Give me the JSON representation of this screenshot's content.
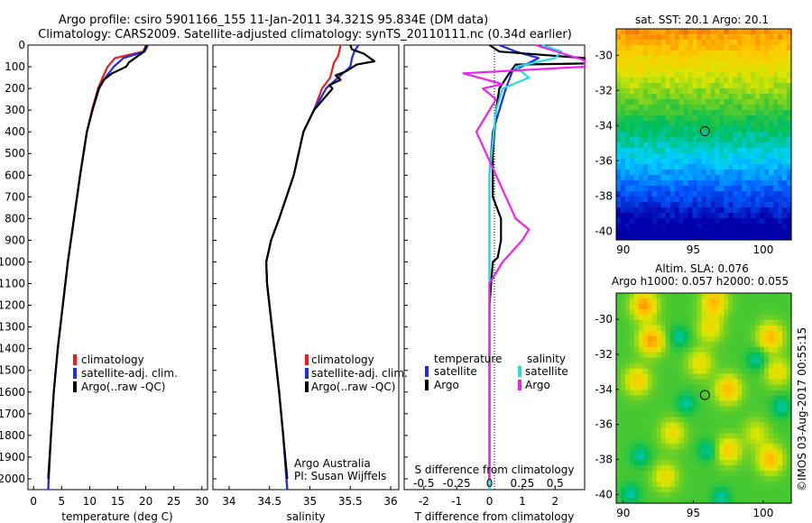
{
  "header": {
    "line1": "Argo profile: csiro 5901166_155 11-Jan-2011 34.321S 95.834E (DM data)",
    "line2": "Climatology: CARS2009. Satellite-adjusted climatology: synTS_20110111.nc (0.34d earlier)"
  },
  "colors": {
    "climatology": "#ee1c1c",
    "satellite": "#1c2bee",
    "argo": "#000000",
    "salinity_satellite": "#22dddd",
    "salinity_argo": "#ee22ee"
  },
  "legend": {
    "climatology": "climatology",
    "satellite": "satellite-adj. clim.",
    "argo": "Argo(..raw -QC)"
  },
  "diff_legend": {
    "temp_header": "temperature",
    "sal_header": "salinity",
    "satellite": "satellite",
    "argo": "Argo"
  },
  "annotation": {
    "line1": "Argo Australia",
    "line2": "PI: Susan Wijffels"
  },
  "maps": {
    "sst_title": "sat. SST: 20.1 Argo: 20.1",
    "sla_title1": "Altim. SLA: 0.076",
    "sla_title2": "Argo h1000: 0.057 h2000: 0.055"
  },
  "stamp": "©IMOS 03-Aug-2017 00:55:15",
  "chart_data": [
    {
      "type": "line",
      "panel": "temperature",
      "xlabel": "temperature (deg C)",
      "ylim": [
        2050,
        0
      ],
      "xlim": [
        -1,
        31
      ],
      "x_ticks": [
        0,
        5,
        10,
        15,
        20,
        25,
        30
      ],
      "x_tick_labels": [
        "0",
        "5",
        "10",
        "15",
        "20",
        "25",
        "30"
      ],
      "y_ticks": [
        0,
        100,
        200,
        300,
        400,
        500,
        600,
        700,
        800,
        900,
        1000,
        1100,
        1200,
        1300,
        1400,
        1500,
        1600,
        1700,
        1800,
        1900,
        2000
      ],
      "y_tick_labels": [
        "0",
        "100",
        "200",
        "300",
        "400",
        "500",
        "600",
        "700",
        "800",
        "900",
        "1000",
        "1100",
        "1200",
        "1300",
        "1400",
        "1500",
        "1600",
        "1700",
        "1800",
        "1900",
        "2000"
      ],
      "series": [
        {
          "name": "climatology",
          "color": "#ee1c1c",
          "points": [
            [
              20.1,
              0
            ],
            [
              19.5,
              30
            ],
            [
              14.5,
              60
            ],
            [
              13.2,
              100
            ],
            [
              12.3,
              150
            ],
            [
              11.5,
              200
            ],
            [
              10.4,
              300
            ],
            [
              9.5,
              400
            ],
            [
              8.3,
              600
            ],
            [
              7.2,
              800
            ],
            [
              6.1,
              1000
            ],
            [
              5.2,
              1200
            ],
            [
              4.3,
              1400
            ],
            [
              3.6,
              1600
            ],
            [
              3.1,
              1800
            ],
            [
              2.6,
              2050
            ]
          ]
        },
        {
          "name": "satellite-adj. clim.",
          "color": "#1c2bee",
          "points": [
            [
              20.4,
              0
            ],
            [
              19.8,
              30
            ],
            [
              16,
              60
            ],
            [
              14.3,
              100
            ],
            [
              12.8,
              150
            ],
            [
              11.7,
              200
            ],
            [
              10.5,
              300
            ],
            [
              9.5,
              400
            ],
            [
              8.3,
              600
            ],
            [
              7.2,
              800
            ],
            [
              6.1,
              1000
            ],
            [
              5.2,
              1200
            ],
            [
              4.3,
              1400
            ],
            [
              3.6,
              1600
            ],
            [
              3.1,
              1800
            ],
            [
              2.6,
              2050
            ]
          ]
        },
        {
          "name": "Argo(..raw -QC)",
          "color": "#000000",
          "points": [
            [
              20.1,
              0
            ],
            [
              19.7,
              30
            ],
            [
              17,
              80
            ],
            [
              16.5,
              100
            ],
            [
              14,
              130
            ],
            [
              12.5,
              160
            ],
            [
              11.6,
              200
            ],
            [
              10.5,
              300
            ],
            [
              9.5,
              400
            ],
            [
              8.3,
              600
            ],
            [
              7.2,
              800
            ],
            [
              6.1,
              1000
            ],
            [
              5.2,
              1200
            ],
            [
              4.3,
              1400
            ],
            [
              3.6,
              1600
            ],
            [
              3.1,
              1800
            ],
            [
              2.6,
              2000
            ]
          ]
        }
      ]
    },
    {
      "type": "line",
      "panel": "salinity",
      "xlabel": "salinity",
      "ylim": [
        2050,
        0
      ],
      "xlim": [
        33.8,
        36.1
      ],
      "x_ticks": [
        34,
        34.5,
        35,
        35.5,
        36
      ],
      "x_tick_labels": [
        "34",
        "34.5",
        "35",
        "35.5",
        "36"
      ],
      "series": [
        {
          "name": "climatology",
          "color": "#ee1c1c",
          "points": [
            [
              35.38,
              0
            ],
            [
              35.35,
              50
            ],
            [
              35.3,
              80
            ],
            [
              35.25,
              150
            ],
            [
              35.15,
              200
            ],
            [
              35.05,
              300
            ],
            [
              34.92,
              400
            ],
            [
              34.8,
              600
            ],
            [
              34.62,
              800
            ],
            [
              34.52,
              900
            ],
            [
              34.46,
              1000
            ],
            [
              34.47,
              1100
            ],
            [
              34.5,
              1200
            ],
            [
              34.56,
              1400
            ],
            [
              34.62,
              1600
            ],
            [
              34.67,
              1800
            ],
            [
              34.72,
              2050
            ]
          ]
        },
        {
          "name": "satellite-adj. clim.",
          "color": "#1c2bee",
          "points": [
            [
              35.6,
              0
            ],
            [
              35.55,
              30
            ],
            [
              35.52,
              60
            ],
            [
              35.5,
              100
            ],
            [
              35.35,
              150
            ],
            [
              35.2,
              200
            ],
            [
              35.05,
              300
            ],
            [
              34.92,
              400
            ],
            [
              34.8,
              600
            ],
            [
              34.62,
              800
            ],
            [
              34.52,
              900
            ],
            [
              34.46,
              1000
            ],
            [
              34.47,
              1100
            ],
            [
              34.5,
              1200
            ],
            [
              34.56,
              1400
            ],
            [
              34.62,
              1600
            ],
            [
              34.67,
              1800
            ],
            [
              34.72,
              2050
            ]
          ]
        },
        {
          "name": "Argo(..raw -QC)",
          "color": "#000000",
          "points": [
            [
              35.5,
              0
            ],
            [
              35.52,
              20
            ],
            [
              35.67,
              40
            ],
            [
              35.8,
              75
            ],
            [
              35.58,
              90
            ],
            [
              35.45,
              120
            ],
            [
              35.32,
              140
            ],
            [
              35.38,
              160
            ],
            [
              35.24,
              185
            ],
            [
              35.28,
              200
            ],
            [
              35.05,
              300
            ],
            [
              34.92,
              400
            ],
            [
              34.8,
              600
            ],
            [
              34.62,
              800
            ],
            [
              34.52,
              900
            ],
            [
              34.46,
              1000
            ],
            [
              34.47,
              1100
            ],
            [
              34.5,
              1200
            ],
            [
              34.56,
              1400
            ],
            [
              34.62,
              1600
            ],
            [
              34.67,
              1800
            ],
            [
              34.72,
              2000
            ]
          ]
        }
      ]
    },
    {
      "type": "line",
      "panel": "differences",
      "xlabel": "T difference from climatology",
      "xlabel_top": "S difference from climatology",
      "ylim": [
        2050,
        0
      ],
      "xlim": [
        -2.6,
        2.9
      ],
      "x_ticks": [
        -2,
        -1,
        0,
        1,
        2
      ],
      "x_tick_labels": [
        "-2",
        "-1",
        "0",
        "1",
        "2"
      ],
      "x_ticks_salinity": [
        -0.5,
        -0.25,
        0,
        0.25,
        0.5
      ],
      "x_tick_labels_salinity": [
        "-0.5",
        "-0.25",
        "0",
        "0.25",
        "0.5"
      ],
      "series": [
        {
          "name": "temperature satellite",
          "color": "#1c2bee",
          "points": [
            [
              0.3,
              0
            ],
            [
              0.8,
              30
            ],
            [
              1.5,
              60
            ],
            [
              0.7,
              120
            ],
            [
              0.5,
              200
            ],
            [
              0.3,
              300
            ],
            [
              0.1,
              400
            ],
            [
              0,
              600
            ],
            [
              0,
              2050
            ]
          ]
        },
        {
          "name": "temperature Argo",
          "color": "#000000",
          "points": [
            [
              0,
              0
            ],
            [
              0.3,
              30
            ],
            [
              2.9,
              60
            ],
            [
              2.9,
              85
            ],
            [
              0.8,
              90
            ],
            [
              0.6,
              130
            ],
            [
              0.3,
              200
            ],
            [
              0.2,
              300
            ],
            [
              0.1,
              500
            ],
            [
              0.1,
              700
            ],
            [
              0.35,
              800
            ],
            [
              0.35,
              900
            ],
            [
              0.25,
              980
            ],
            [
              0.1,
              1000
            ],
            [
              0,
              1200
            ],
            [
              0,
              2000
            ]
          ]
        },
        {
          "name": "salinity satellite",
          "color": "#22dddd",
          "points": [
            [
              0.4,
              0
            ],
            [
              0.55,
              30
            ],
            [
              0.5,
              60
            ],
            [
              0.2,
              100
            ],
            [
              0.3,
              150
            ],
            [
              0.1,
              200
            ],
            [
              0.05,
              300
            ],
            [
              0,
              600
            ],
            [
              0,
              2050
            ]
          ]
        },
        {
          "name": "salinity Argo",
          "color": "#ee22ee",
          "points": [
            [
              0.35,
              0
            ],
            [
              1.3,
              70
            ],
            [
              1.3,
              90
            ],
            [
              0.8,
              100
            ],
            [
              -0.2,
              130
            ],
            [
              0.1,
              180
            ],
            [
              -0.05,
              200
            ],
            [
              0.05,
              250
            ],
            [
              -0.1,
              400
            ],
            [
              0.05,
              600
            ],
            [
              0.2,
              800
            ],
            [
              0.3,
              850
            ],
            [
              0.25,
              900
            ],
            [
              0.1,
              1000
            ],
            [
              0,
              1100
            ],
            [
              0,
              2000
            ]
          ]
        }
      ]
    },
    {
      "type": "heatmap",
      "panel": "sst_map",
      "title": "sat. SST: 20.1 Argo: 20.1",
      "xlim": [
        89.5,
        102
      ],
      "ylim": [
        -40.5,
        -28.5
      ],
      "x_ticks": [
        90,
        95,
        100
      ],
      "x_tick_labels": [
        "90",
        "95",
        "100"
      ],
      "y_ticks": [
        -30,
        -32,
        -34,
        -36,
        -38,
        -40
      ],
      "y_tick_labels": [
        "-30",
        "-32",
        "-34",
        "-36",
        "-38",
        "-40"
      ],
      "argo_position": [
        95.834,
        -34.321
      ]
    },
    {
      "type": "heatmap",
      "panel": "sla_map",
      "title": "Altim. SLA: 0.076",
      "subtitle": "Argo h1000: 0.057 h2000: 0.055",
      "xlim": [
        89.5,
        102
      ],
      "ylim": [
        -40.5,
        -28.5
      ],
      "x_ticks": [
        90,
        95,
        100
      ],
      "x_tick_labels": [
        "90",
        "95",
        "100"
      ],
      "y_ticks": [
        -30,
        -32,
        -34,
        -36,
        -38,
        -40
      ],
      "y_tick_labels": [
        "-30",
        "-32",
        "-34",
        "-36",
        "-38",
        "-40"
      ],
      "argo_position": [
        95.834,
        -34.321
      ]
    }
  ]
}
